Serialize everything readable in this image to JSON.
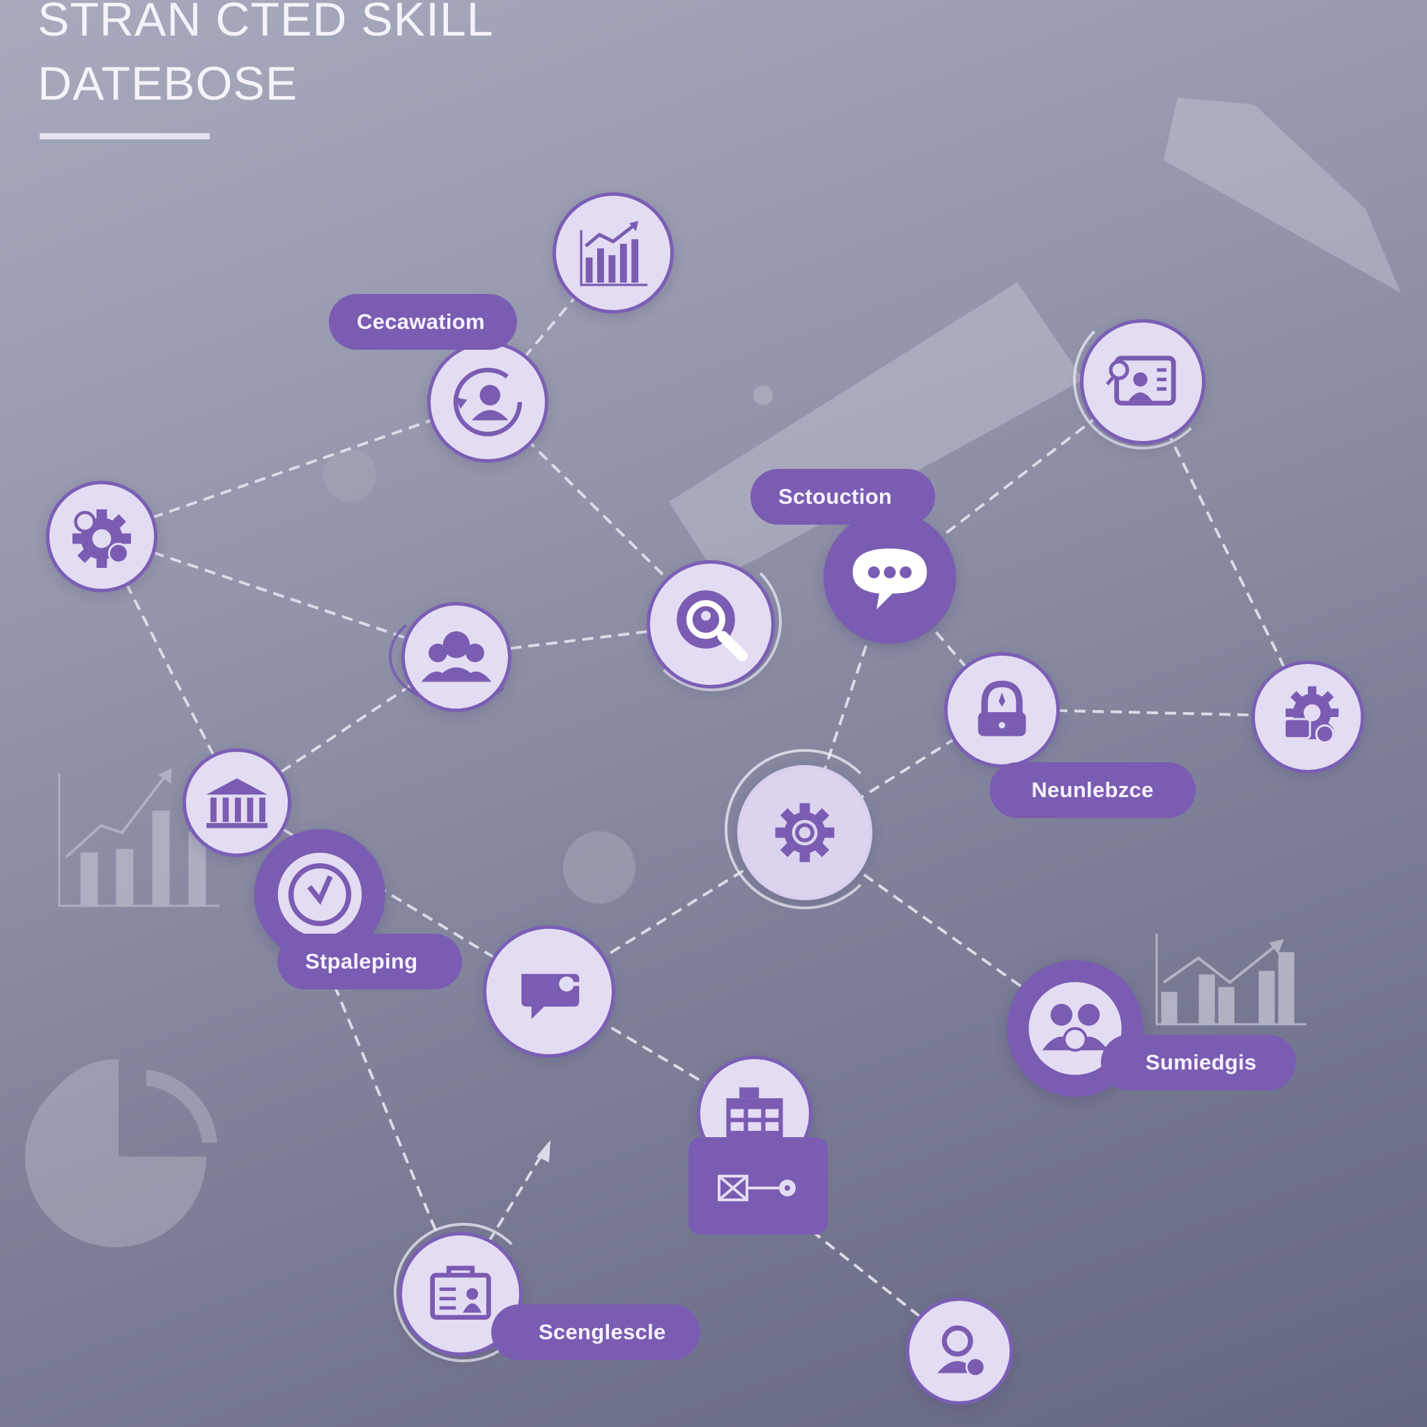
{
  "title": "STRAN CTED SKILL\nDATEBOSE",
  "colors": {
    "accent": "#7a5cb2",
    "node_fill": "#e4dcf2",
    "node_border": "#7a5fb5",
    "connector": "#d9d8e6"
  },
  "labels": [
    {
      "id": "cecawatiom",
      "text": "Cecawatiom"
    },
    {
      "id": "sctouction",
      "text": "Sctouction"
    },
    {
      "id": "neunlebzce",
      "text": "Neunlebzce"
    },
    {
      "id": "stpaleping",
      "text": "Stpaleping"
    },
    {
      "id": "sumiedgis",
      "text": "Sumiedgis"
    },
    {
      "id": "scenglescle",
      "text": "Scenglescle"
    }
  ],
  "nodes": [
    {
      "id": "analytics",
      "icon": "bar-chart-icon"
    },
    {
      "id": "profile",
      "icon": "user-refresh-icon"
    },
    {
      "id": "settings-left",
      "icon": "gear-icon"
    },
    {
      "id": "team",
      "icon": "team-icon"
    },
    {
      "id": "search",
      "icon": "search-user-icon"
    },
    {
      "id": "chat",
      "icon": "chat-bubble-icon"
    },
    {
      "id": "contact-card",
      "icon": "contact-card-icon"
    },
    {
      "id": "lock",
      "icon": "lock-icon"
    },
    {
      "id": "settings-right",
      "icon": "gear-lock-icon"
    },
    {
      "id": "core",
      "icon": "gear-icon"
    },
    {
      "id": "institution",
      "icon": "bank-icon"
    },
    {
      "id": "time",
      "icon": "clock-icon"
    },
    {
      "id": "message",
      "icon": "message-icon"
    },
    {
      "id": "finance",
      "icon": "money-team-icon"
    },
    {
      "id": "planner",
      "icon": "calendar-grid-icon"
    },
    {
      "id": "workflow",
      "icon": "workflow-icon"
    },
    {
      "id": "portfolio",
      "icon": "briefcase-id-icon"
    },
    {
      "id": "person",
      "icon": "user-icon"
    }
  ]
}
